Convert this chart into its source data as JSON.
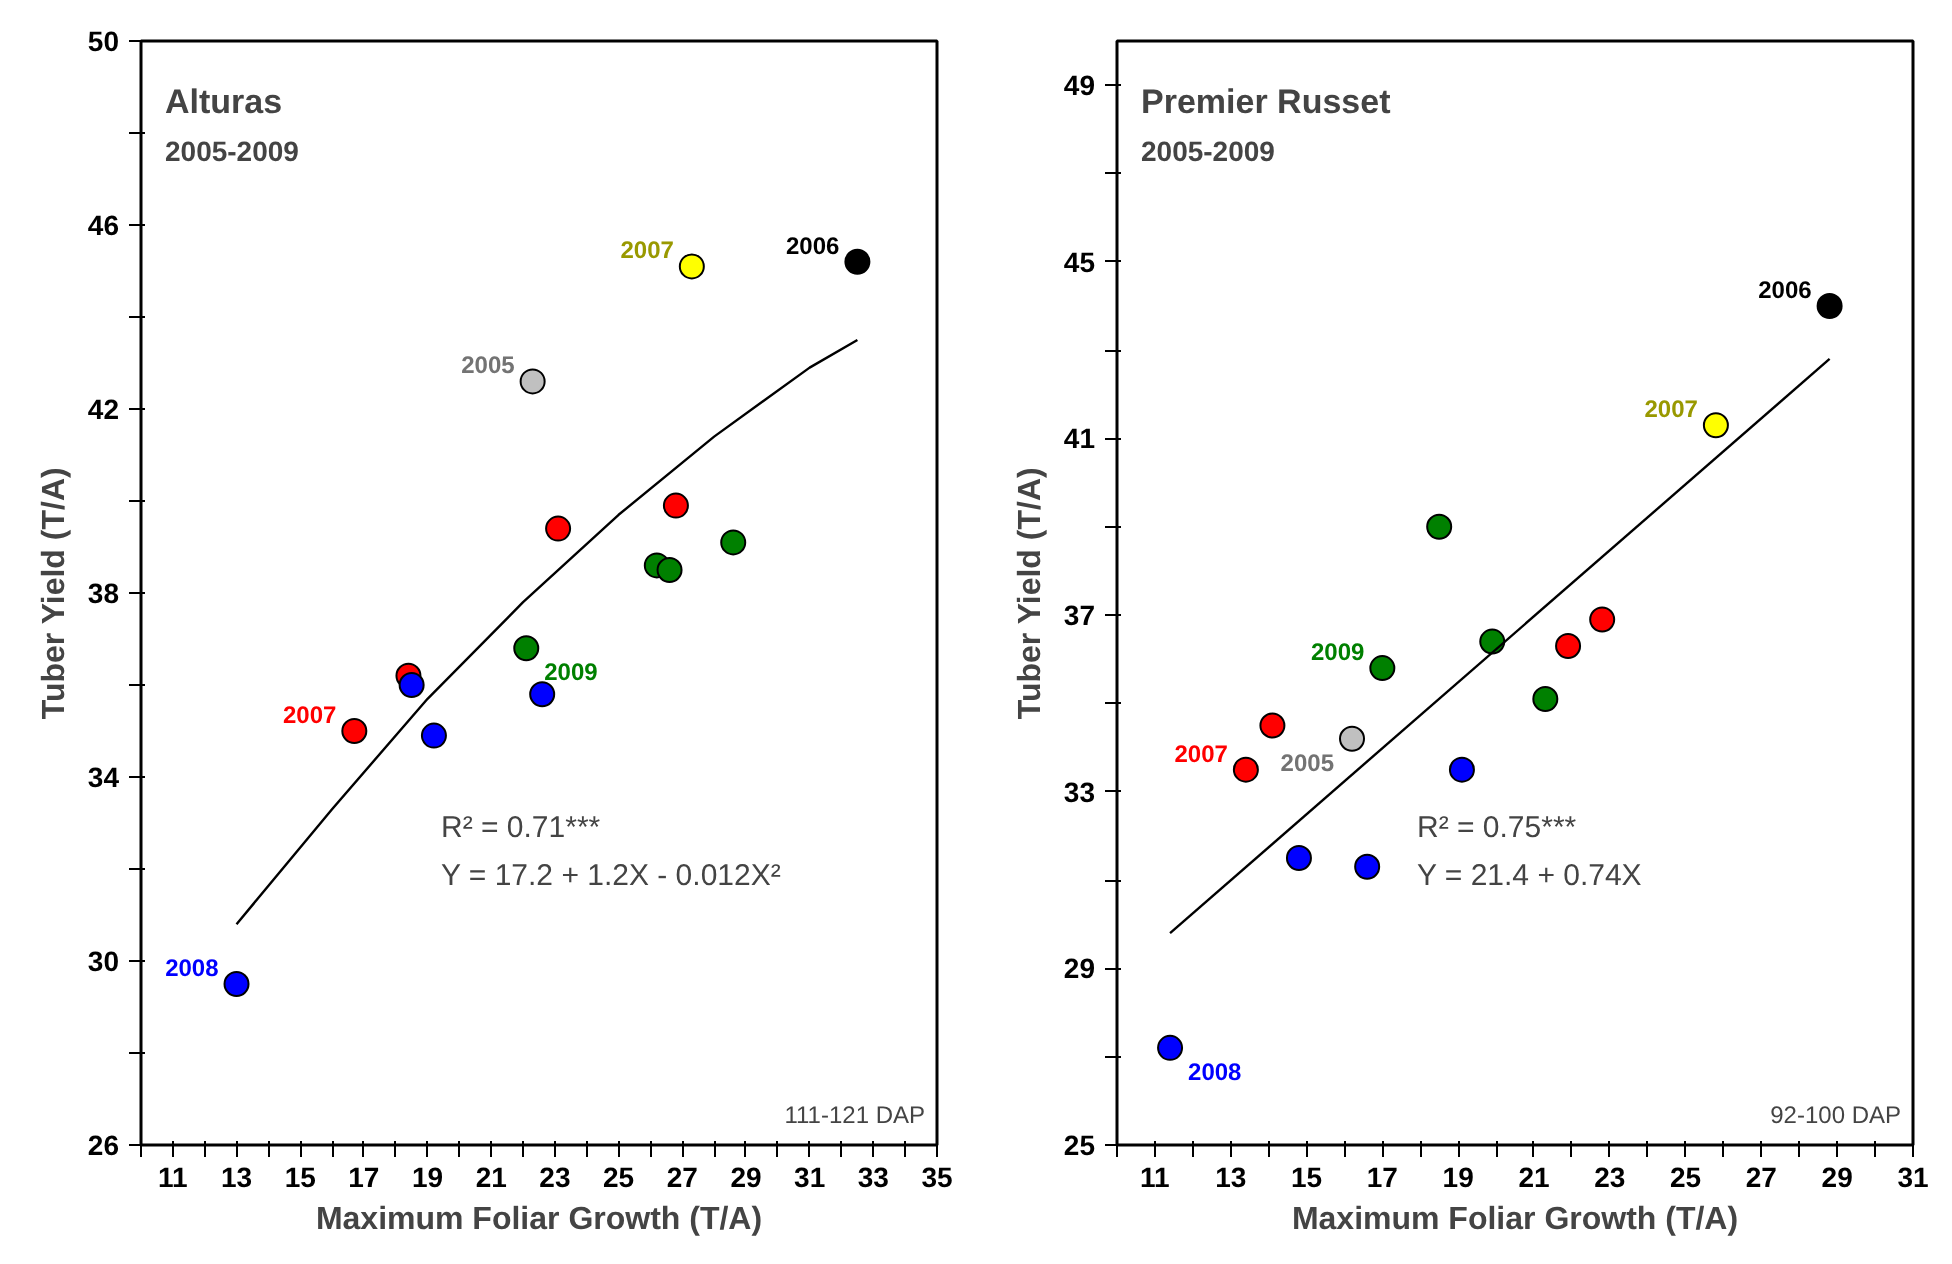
{
  "chart_data": [
    {
      "type": "scatter",
      "title": "Alturas",
      "subtitle": "2005-2009",
      "xlabel": "Maximum Foliar Growth (T/A)",
      "ylabel": "Tuber Yield (T/A)",
      "marker": "circle",
      "grid": false,
      "annotations": [
        "R² = 0.71***",
        "Y = 17.2 + 1.2X - 0.012X²",
        "111-121 DAP"
      ],
      "xlim": [
        10,
        35
      ],
      "ylim": [
        26,
        50
      ],
      "xticks": [
        {
          "value": 10,
          "label": null
        },
        11,
        {
          "value": 12,
          "label": null
        },
        13,
        {
          "value": 14,
          "label": null
        },
        15,
        {
          "value": 16,
          "label": null
        },
        17,
        {
          "value": 18,
          "label": null
        },
        19,
        {
          "value": 20,
          "label": null
        },
        21,
        {
          "value": 22,
          "label": null
        },
        23,
        {
          "value": 24,
          "label": null
        },
        25,
        {
          "value": 26,
          "label": null
        },
        27,
        {
          "value": 28,
          "label": null
        },
        29,
        {
          "value": 30,
          "label": null
        },
        31,
        {
          "value": 32,
          "label": null
        },
        33,
        {
          "value": 34,
          "label": null
        },
        35
      ],
      "yticks": [
        26,
        {
          "value": 28,
          "label": null
        },
        30,
        {
          "value": 32,
          "label": null
        },
        34,
        {
          "value": 36,
          "label": null
        },
        38,
        {
          "value": 40,
          "label": null
        },
        42,
        {
          "value": 44,
          "label": null
        },
        46,
        {
          "value": 48,
          "label": null
        },
        50
      ],
      "series": [
        {
          "name": "2005",
          "color": "#c0c0c0",
          "x": [
            22.3
          ],
          "values": [
            42.6
          ]
        },
        {
          "name": "2006",
          "color": "#000000",
          "x": [
            32.5
          ],
          "values": [
            45.2
          ]
        },
        {
          "name": "2007",
          "color": "#ff0000",
          "x": [
            16.7,
            18.4,
            23.1,
            26.8
          ],
          "values": [
            35.0,
            36.2,
            39.4,
            39.9
          ]
        },
        {
          "name": "2007",
          "color": "#ffff00",
          "x": [
            27.3
          ],
          "values": [
            45.1
          ]
        },
        {
          "name": "2008",
          "color": "#0000ff",
          "x": [
            13.0,
            18.5,
            19.2,
            22.6
          ],
          "values": [
            29.5,
            36.0,
            34.9,
            35.8
          ]
        },
        {
          "name": "2009",
          "color": "#008000",
          "x": [
            22.1,
            26.2,
            26.6,
            28.6
          ],
          "values": [
            36.8,
            38.6,
            38.5,
            39.1
          ]
        },
        {
          "type": "line",
          "color": "#000000",
          "marker": "none",
          "line_style": "solid",
          "x": [
            13,
            16,
            19,
            22,
            25,
            28,
            31,
            32.5
          ],
          "values": [
            30.8,
            33.3,
            35.7,
            37.8,
            39.7,
            41.4,
            42.9,
            43.5
          ]
        }
      ]
    },
    {
      "type": "scatter",
      "title": "Premier Russet",
      "subtitle": "2005-2009",
      "xlabel": "Maximum Foliar Growth (T/A)",
      "ylabel": "Tuber Yield (T/A)",
      "marker": "circle",
      "grid": false,
      "annotations": [
        "R² = 0.75***",
        "Y = 21.4 + 0.74X",
        "92-100 DAP"
      ],
      "xlim": [
        10,
        31
      ],
      "ylim": [
        25,
        50
      ],
      "xticks": [
        {
          "value": 10,
          "label": null
        },
        11,
        {
          "value": 12,
          "label": null
        },
        13,
        {
          "value": 14,
          "label": null
        },
        15,
        {
          "value": 16,
          "label": null
        },
        17,
        {
          "value": 18,
          "label": null
        },
        19,
        {
          "value": 20,
          "label": null
        },
        21,
        {
          "value": 22,
          "label": null
        },
        23,
        {
          "value": 24,
          "label": null
        },
        25,
        {
          "value": 26,
          "label": null
        },
        27,
        {
          "value": 28,
          "label": null
        },
        29,
        {
          "value": 30,
          "label": null
        },
        31
      ],
      "yticks": [
        25,
        {
          "value": 27,
          "label": null
        },
        29,
        {
          "value": 31,
          "label": null
        },
        33,
        {
          "value": 35,
          "label": null
        },
        37,
        {
          "value": 39,
          "label": null
        },
        41,
        {
          "value": 43,
          "label": null
        },
        45,
        {
          "value": 47,
          "label": null
        },
        49
      ],
      "series": [
        {
          "name": "2005",
          "color": "#c0c0c0",
          "x": [
            16.2
          ],
          "values": [
            34.2
          ]
        },
        {
          "name": "2006",
          "color": "#000000",
          "x": [
            28.8
          ],
          "values": [
            44.0
          ]
        },
        {
          "name": "2007",
          "color": "#ff0000",
          "x": [
            13.4,
            14.1,
            21.9,
            22.8
          ],
          "values": [
            33.5,
            34.5,
            36.3,
            36.9
          ]
        },
        {
          "name": "2007",
          "color": "#ffff00",
          "x": [
            25.8
          ],
          "values": [
            41.3
          ]
        },
        {
          "name": "2008",
          "color": "#0000ff",
          "x": [
            11.4,
            14.8,
            16.6,
            19.1
          ],
          "values": [
            27.2,
            31.5,
            31.3,
            33.5
          ]
        },
        {
          "name": "2009",
          "color": "#008000",
          "x": [
            17.0,
            18.5,
            19.9,
            21.3
          ],
          "values": [
            35.8,
            39.0,
            36.4,
            35.1
          ]
        },
        {
          "type": "line",
          "color": "#000000",
          "marker": "none",
          "line_style": "solid",
          "x": [
            11.4,
            28.8
          ],
          "values": [
            29.8,
            42.8
          ]
        }
      ]
    }
  ]
}
